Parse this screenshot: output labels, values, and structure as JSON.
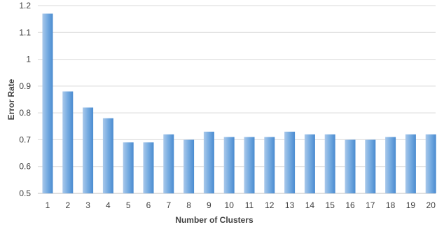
{
  "chart_data": {
    "type": "bar",
    "title": "",
    "xlabel": "Number of Clusters",
    "ylabel": "Error Rate",
    "categories": [
      "1",
      "2",
      "3",
      "4",
      "5",
      "6",
      "7",
      "8",
      "9",
      "10",
      "11",
      "12",
      "13",
      "14",
      "15",
      "16",
      "17",
      "18",
      "19",
      "20"
    ],
    "values": [
      1.17,
      0.88,
      0.82,
      0.78,
      0.69,
      0.69,
      0.72,
      0.7,
      0.73,
      0.71,
      0.71,
      0.71,
      0.73,
      0.72,
      0.72,
      0.7,
      0.7,
      0.71,
      0.72,
      0.72
    ],
    "ylim": [
      0.5,
      1.2
    ],
    "yticks": [
      "0.5",
      "0.6",
      "0.7",
      "0.8",
      "0.9",
      "1",
      "1.1",
      "1.2"
    ],
    "grid": true,
    "legend": "none",
    "colors": {
      "bar_light": "#a9c8ea",
      "bar_dark": "#4a8bd0",
      "grid": "#d9d9d9",
      "text": "#404040"
    }
  }
}
